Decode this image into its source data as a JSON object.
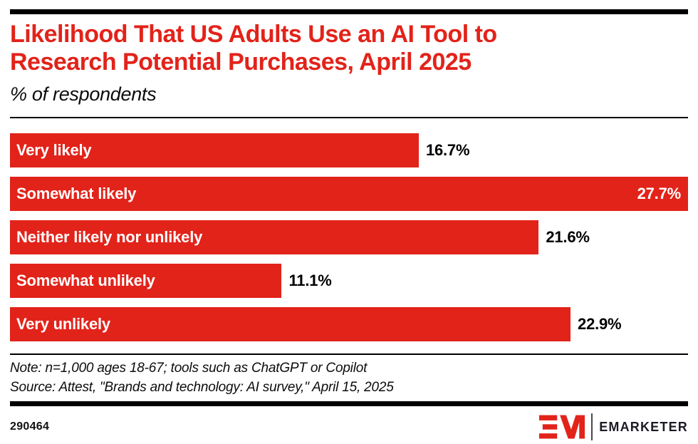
{
  "colors": {
    "red": "#e2231a",
    "black": "#000000",
    "white": "#ffffff",
    "brand_ink": "#1b1b24"
  },
  "header": {
    "title_line1": "Likelihood That US Adults Use an AI Tool to",
    "title_line2": "Research Potential Purchases, April 2025",
    "subtitle": "% of respondents"
  },
  "chart_data": {
    "type": "bar",
    "orientation": "horizontal",
    "title": "Likelihood That US Adults Use an AI Tool to Research Potential Purchases, April 2025",
    "subtitle": "% of respondents",
    "categories": [
      "Very likely",
      "Somewhat likely",
      "Neither likely nor unlikely",
      "Somewhat unlikely",
      "Very unlikely"
    ],
    "values": [
      16.7,
      27.7,
      21.6,
      11.1,
      22.9
    ],
    "value_labels": [
      "16.7%",
      "27.7%",
      "21.6%",
      "11.1%",
      "22.9%"
    ],
    "xlim": [
      0,
      27.7
    ],
    "grid": false,
    "legend": false,
    "bar_color": "#e2231a",
    "value_label_placement": "outside-except-max-inside"
  },
  "notes": {
    "note": "Note: n=1,000 ages 18-67; tools such as ChatGPT or Copilot",
    "source": "Source: Attest, \"Brands and technology: AI survey,\" April 15, 2025"
  },
  "footer": {
    "chart_id": "290464",
    "brand": "EMARKETER"
  }
}
